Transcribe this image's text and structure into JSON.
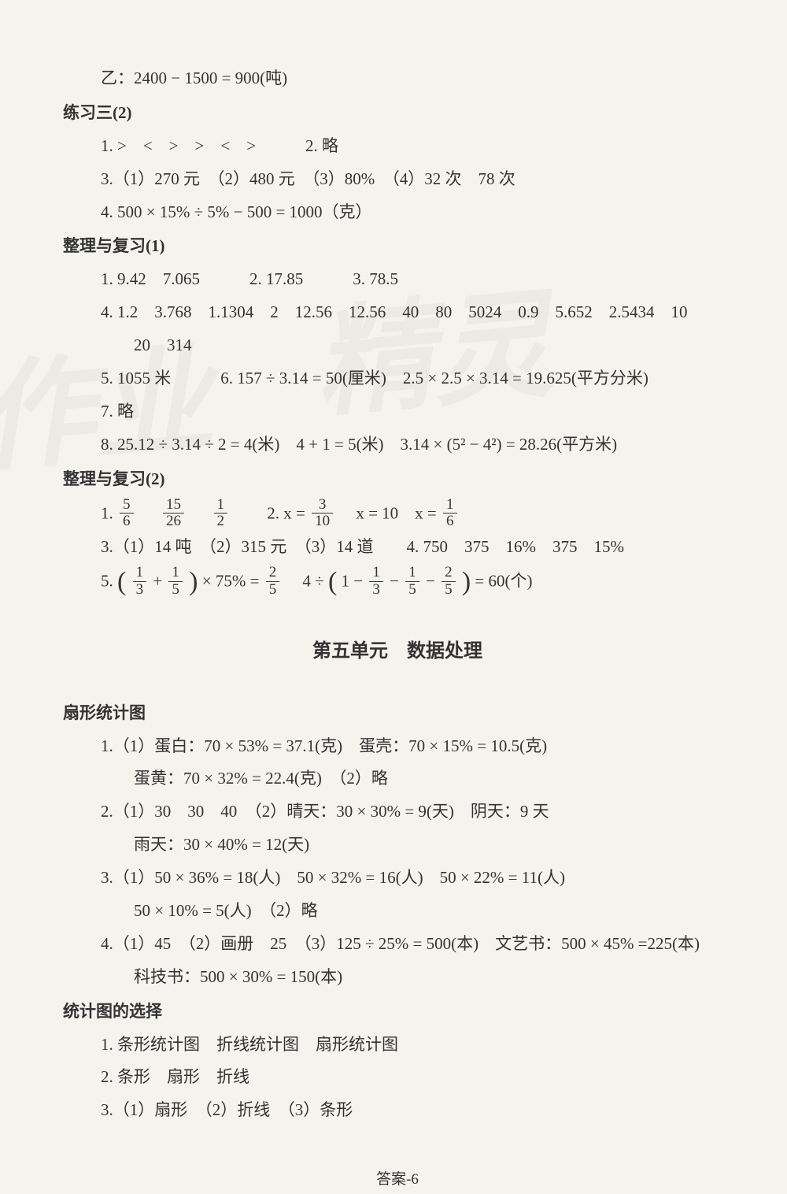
{
  "top_line": "乙：2400 − 1500 = 900(吨)",
  "sections": {
    "ex3_2": {
      "title": "练习三(2)",
      "lines": [
        "1. >　<　>　>　<　>　　　2. 略",
        "3.（1）270 元　（2）480 元　（3）80%　（4）32 次　78 次",
        "4. 500 × 15% ÷ 5% − 500 = 1000（克）"
      ]
    },
    "review1": {
      "title": "整理与复习(1)",
      "lines": [
        "1. 9.42　7.065　　　2. 17.85　　　3. 78.5",
        "4. 1.2　3.768　1.1304　2　12.56　12.56　40　80　5024　0.9　5.652　2.5434　10",
        "　　20　314",
        "5. 1055 米　　　6. 157 ÷ 3.14 = 50(厘米)　2.5 × 2.5 × 3.14 = 19.625(平方分米)",
        "7. 略",
        "8. 25.12 ÷ 3.14 ÷ 2 = 4(米)　4 + 1 = 5(米)　3.14 × (5² − 4²) = 28.26(平方米)"
      ]
    },
    "review2": {
      "title": "整理与复习(2)",
      "frac_line1_prefix": "1. ",
      "fracs1": [
        {
          "n": "5",
          "d": "6"
        },
        {
          "n": "15",
          "d": "26"
        },
        {
          "n": "1",
          "d": "2"
        }
      ],
      "frac_line1_mid": "　　2. x = ",
      "frac_x1": {
        "n": "3",
        "d": "10"
      },
      "frac_line1_mid2": "　x = 10　x = ",
      "frac_x2": {
        "n": "1",
        "d": "6"
      },
      "line3": "3.（1）14 吨　（2）315 元　（3）14 道　　4. 750　375　16%　375　15%",
      "line5_prefix": "5. ",
      "f5a": {
        "n": "1",
        "d": "3"
      },
      "f5b": {
        "n": "1",
        "d": "5"
      },
      "line5_mid1": " × 75% = ",
      "f5c": {
        "n": "2",
        "d": "5"
      },
      "line5_mid2": "　4 ÷ ",
      "line5_mid3": "1 − ",
      "f5d": {
        "n": "1",
        "d": "3"
      },
      "f5e": {
        "n": "1",
        "d": "5"
      },
      "f5f": {
        "n": "2",
        "d": "5"
      },
      "line5_end": " = 60(个)"
    },
    "unit5": {
      "title": "第五单元　数据处理"
    },
    "fan": {
      "title": "扇形统计图",
      "lines": [
        "1.（1）蛋白：70 × 53% = 37.1(克)　蛋壳：70 × 15% = 10.5(克)",
        "　　蛋黄：70 × 32% = 22.4(克)　（2）略",
        "2.（1）30　30　40　（2）晴天：30 × 30% = 9(天)　阴天：9 天",
        "　　雨天：30 × 40% = 12(天)",
        "3.（1）50 × 36% = 18(人)　50 × 32% = 16(人)　50 × 22% = 11(人)",
        "　　50 × 10% = 5(人)　（2）略",
        "4.（1）45　（2）画册　25　（3）125 ÷ 25% = 500(本)　文艺书：500 × 45% =225(本)",
        "　　科技书：500 × 30% = 150(本)"
      ]
    },
    "select": {
      "title": "统计图的选择",
      "lines": [
        "1. 条形统计图　折线统计图　扇形统计图",
        "2. 条形　扇形　折线",
        "3.（1）扇形　（2）折线　（3）条形"
      ]
    }
  },
  "footer": "答案-6",
  "watermark1": "作业",
  "watermark2": "精灵",
  "colors": {
    "bg": "#f5f3ee",
    "text": "#333333"
  },
  "fonts": {
    "body_size": 21,
    "title_size": 24
  }
}
